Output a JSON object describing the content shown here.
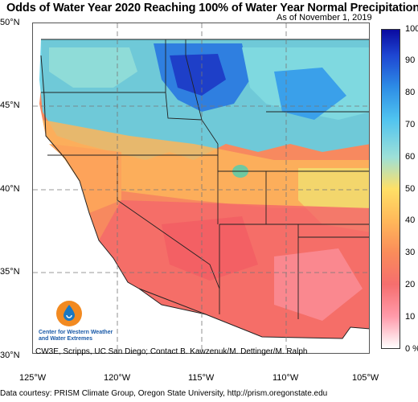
{
  "title": "Odds of Water Year 2020 Reaching 100% of Water Year Normal Precipitation",
  "as_of": "As of November 1, 2019",
  "latitude_labels": [
    "50°N",
    "45°N",
    "40°N",
    "35°N",
    "30°N"
  ],
  "longitude_labels": [
    "125°W",
    "120°W",
    "115°W",
    "110°W",
    "105°W"
  ],
  "colorbar": {
    "ticks": [
      "100",
      "90",
      "80",
      "70",
      "60",
      "50",
      "40",
      "30",
      "20",
      "10",
      "0 %"
    ],
    "colors": [
      "#0a0aa0",
      "#1e46d2",
      "#2d8ce6",
      "#4fc3f0",
      "#9de0d8",
      "#ffe066",
      "#ffb85a",
      "#fa8c5a",
      "#f56e6e",
      "#ff9aaa",
      "#ffffff"
    ]
  },
  "logo": {
    "text_line1": "Center for Western Weather",
    "text_line2": "and Water Extremes",
    "icon": "water-drop-icon"
  },
  "contact": "CW3E, Scripps, UC San Diego; Contact B. Kawzenuk/M. Dettinger/M. Ralph",
  "credit": "Data courtesy: PRISM Climate Group, Oregon State University, http://prism.oregonstate.edu"
}
